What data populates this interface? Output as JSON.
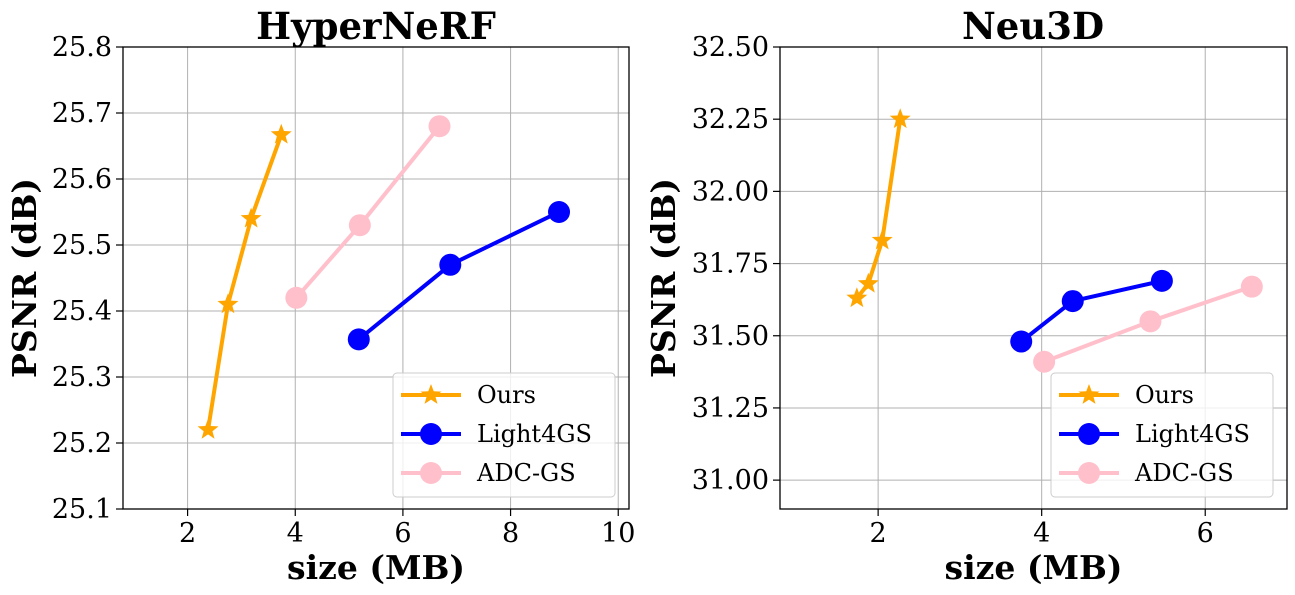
{
  "chart_data": [
    {
      "type": "line",
      "title": "HyperNeRF",
      "xlabel": "size (MB)",
      "ylabel": "PSNR (dB)",
      "xlim": [
        0.8,
        10.2
      ],
      "ylim": [
        25.1,
        25.8
      ],
      "xticks": [
        2,
        4,
        6,
        8,
        10
      ],
      "yticks": [
        25.1,
        25.2,
        25.3,
        25.4,
        25.5,
        25.6,
        25.7,
        25.8
      ],
      "xtick_labels": [
        "2",
        "4",
        "6",
        "8",
        "10"
      ],
      "ytick_labels": [
        "25.1",
        "25.2",
        "25.3",
        "25.4",
        "25.5",
        "25.6",
        "25.7",
        "25.8"
      ],
      "grid": true,
      "legend_position": "lower-right",
      "series": [
        {
          "name": "Ours",
          "color": "#FFA500",
          "marker": "star",
          "x": [
            2.38,
            2.75,
            3.18,
            3.74
          ],
          "y": [
            25.22,
            25.41,
            25.54,
            25.667
          ]
        },
        {
          "name": "Light4GS",
          "color": "#0000FF",
          "marker": "circle",
          "x": [
            5.18,
            6.88,
            8.9
          ],
          "y": [
            25.357,
            25.47,
            25.55
          ]
        },
        {
          "name": "ADC-GS",
          "color": "#FFC0CB",
          "marker": "circle",
          "x": [
            4.02,
            5.2,
            6.68
          ],
          "y": [
            25.42,
            25.53,
            25.68
          ]
        }
      ]
    },
    {
      "type": "line",
      "title": "Neu3D",
      "xlabel": "size (MB)",
      "ylabel": "PSNR (dB)",
      "xlim": [
        0.8,
        7.0
      ],
      "ylim": [
        30.9,
        32.5
      ],
      "xticks": [
        2,
        4,
        6
      ],
      "yticks": [
        31.0,
        31.25,
        31.5,
        31.75,
        32.0,
        32.25,
        32.5
      ],
      "xtick_labels": [
        "2",
        "4",
        "6"
      ],
      "ytick_labels": [
        "31.00",
        "31.25",
        "31.50",
        "31.75",
        "32.00",
        "32.25",
        "32.50"
      ],
      "grid": true,
      "legend_position": "lower-right",
      "series": [
        {
          "name": "Ours",
          "color": "#FFA500",
          "marker": "star",
          "x": [
            1.74,
            1.88,
            2.05,
            2.27
          ],
          "y": [
            31.63,
            31.68,
            31.83,
            32.25
          ]
        },
        {
          "name": "Light4GS",
          "color": "#0000FF",
          "marker": "circle",
          "x": [
            3.75,
            4.38,
            5.47
          ],
          "y": [
            31.48,
            31.62,
            31.69
          ]
        },
        {
          "name": "ADC-GS",
          "color": "#FFC0CB",
          "marker": "circle",
          "x": [
            4.03,
            5.33,
            6.57
          ],
          "y": [
            31.41,
            31.55,
            31.67
          ]
        }
      ]
    }
  ]
}
